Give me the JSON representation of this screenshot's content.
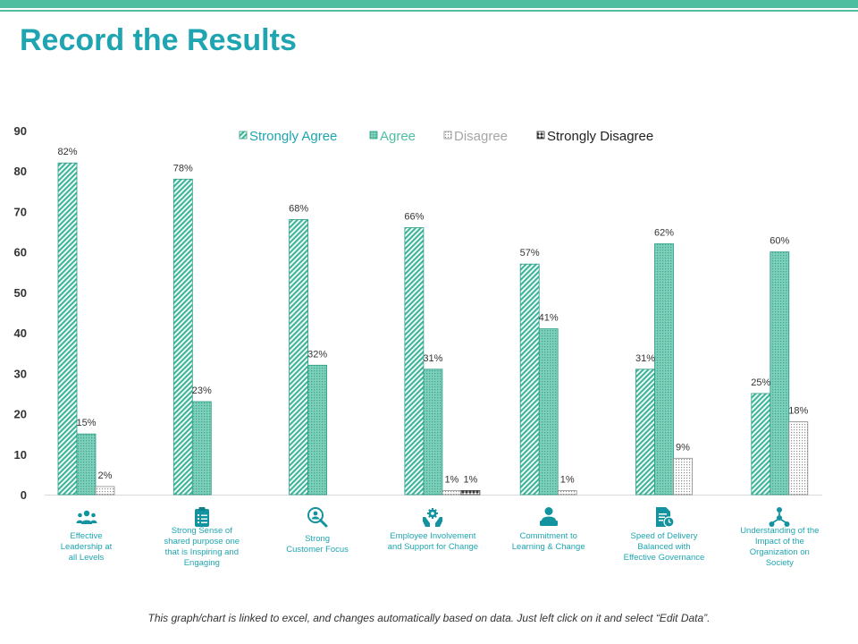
{
  "header": {
    "title": "Record the Results"
  },
  "chart_data": {
    "type": "bar",
    "title": "",
    "xlabel": "",
    "ylabel": "",
    "ylim": [
      0,
      90
    ],
    "yticks": [
      0,
      10,
      20,
      30,
      40,
      50,
      60,
      70,
      80,
      90
    ],
    "grid": false,
    "legend_position": "top",
    "categories": [
      "Effective Leadership at all Levels",
      "Strong Sense of shared purpose one that is Inspiring and Engaging",
      "Strong Customer Focus",
      "Employee Involvement and Support for Change",
      "Commitment to Learning & Change",
      "Speed of Delivery Balanced with Effective Governance",
      "Understanding of the Impact of the Organization on Society"
    ],
    "series": [
      {
        "name": "Strongly Agree",
        "values": [
          82,
          78,
          68,
          66,
          57,
          31,
          25
        ]
      },
      {
        "name": "Agree",
        "values": [
          15,
          23,
          32,
          31,
          41,
          62,
          60
        ]
      },
      {
        "name": "Disagree",
        "values": [
          2,
          null,
          null,
          1,
          1,
          9,
          18
        ]
      },
      {
        "name": "Strongly Disagree",
        "values": [
          null,
          null,
          null,
          1,
          null,
          null,
          null
        ]
      }
    ],
    "data_labels": [
      [
        "82%",
        "78%",
        "68%",
        "66%",
        "57%",
        "31%",
        "25%"
      ],
      [
        "15%",
        "23%",
        "32%",
        "31%",
        "41%",
        "62%",
        "60%"
      ],
      [
        "2%",
        null,
        null,
        "1%",
        "1%",
        "9%",
        "18%"
      ],
      [
        null,
        null,
        null,
        "1%",
        null,
        null,
        null
      ]
    ]
  },
  "categories_display": [
    {
      "lines": [
        "Effective",
        "Leadership at",
        "all Levels"
      ],
      "icon": "people-group-icon"
    },
    {
      "lines": [
        "Strong Sense of",
        "shared purpose one",
        "that is Inspiring and",
        "Engaging"
      ],
      "icon": "clipboard-checklist-icon"
    },
    {
      "lines": [
        "Strong",
        "Customer Focus"
      ],
      "icon": "customer-search-icon"
    },
    {
      "lines": [
        "Employee Involvement",
        "and Support for Change"
      ],
      "icon": "hands-gear-icon"
    },
    {
      "lines": [
        "Commitment  to",
        "Learning & Change"
      ],
      "icon": "person-learning-icon"
    },
    {
      "lines": [
        "Speed of Delivery",
        "Balanced with",
        "Effective Governance"
      ],
      "icon": "document-clock-icon"
    },
    {
      "lines": [
        "Understanding of the",
        "Impact  of the",
        "Organization on",
        "Society"
      ],
      "icon": "organization-network-icon"
    }
  ],
  "colors": {
    "accent": "#1fa5b1",
    "bar_teal": "#4dbfa0",
    "bar_gray": "#9a9a9a",
    "text_dark": "#333333"
  },
  "footer": {
    "note": "This graph/chart is linked to excel, and changes automatically  based on data.  Just left click on it and select “Edit Data”."
  }
}
